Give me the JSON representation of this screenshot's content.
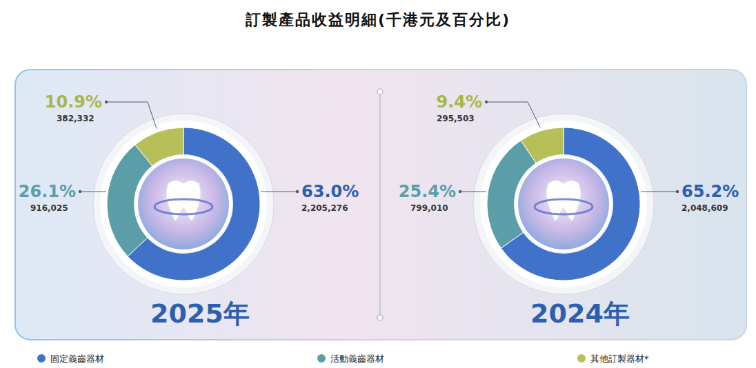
{
  "title": "訂製產品收益明細(千港元及百分比)",
  "chart_data": [
    {
      "type": "pie",
      "title": "2025年",
      "categories": [
        "固定義齒器材",
        "活動義齒器材",
        "其他訂製器材*"
      ],
      "colors": [
        "#3f72c8",
        "#5b9ea8",
        "#b7c058"
      ],
      "values": [
        63.0,
        26.1,
        10.9
      ],
      "value_labels": [
        "63.0%",
        "26.1%",
        "10.9%"
      ],
      "amounts": [
        2205276,
        916025,
        382332
      ],
      "amount_labels": [
        "2,205,276",
        "916,025",
        "382,332"
      ],
      "data_labels": true,
      "legend": "bottom"
    },
    {
      "type": "pie",
      "title": "2024年",
      "categories": [
        "固定義齒器材",
        "活動義齒器材",
        "其他訂製器材*"
      ],
      "colors": [
        "#3f72c8",
        "#5b9ea8",
        "#b7c058"
      ],
      "values": [
        65.2,
        25.4,
        9.4
      ],
      "value_labels": [
        "65.2%",
        "25.4%",
        "9.4%"
      ],
      "amounts": [
        2048609,
        799010,
        295503
      ],
      "amount_labels": [
        "2,048,609",
        "799,010",
        "295,503"
      ],
      "data_labels": true,
      "legend": "bottom"
    }
  ]
}
